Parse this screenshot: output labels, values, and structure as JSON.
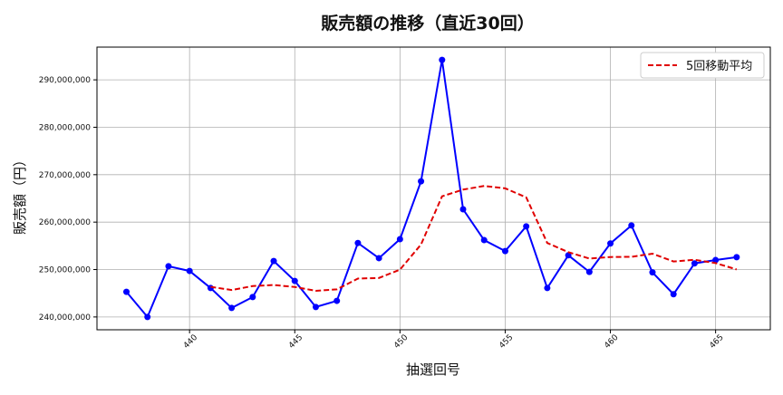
{
  "chart_data": {
    "type": "line",
    "title": "販売額の推移（直近30回）",
    "xlabel": "抽選回号",
    "ylabel": "販売額（円）",
    "x": [
      437,
      438,
      439,
      440,
      441,
      442,
      443,
      444,
      445,
      446,
      447,
      448,
      449,
      450,
      451,
      452,
      453,
      454,
      455,
      456,
      457,
      458,
      459,
      460,
      461,
      462,
      463,
      464,
      465,
      466
    ],
    "xlim": [
      435.6,
      467.6
    ],
    "ylim": [
      237300000,
      296900000
    ],
    "x_ticks": [
      440,
      445,
      450,
      455,
      460,
      465
    ],
    "y_ticks": [
      240000000,
      250000000,
      260000000,
      270000000,
      280000000,
      290000000
    ],
    "y_tick_labels": [
      "240,000,000",
      "250,000,000",
      "260,000,000",
      "270,000,000",
      "280,000,000",
      "290,000,000"
    ],
    "grid": true,
    "legend_position": "top-right",
    "series": [
      {
        "name": "",
        "style": "solid-markers",
        "color": "#0000ff",
        "values": [
          245300000,
          240000000,
          250700000,
          249700000,
          246100000,
          241900000,
          244200000,
          251800000,
          247600000,
          242100000,
          243400000,
          255600000,
          252400000,
          256400000,
          268600000,
          294200000,
          262700000,
          256200000,
          253900000,
          259100000,
          246100000,
          253000000,
          249500000,
          255500000,
          259300000,
          249400000,
          244800000,
          251300000,
          252000000,
          252600000
        ]
      },
      {
        "name": "5回移動平均",
        "style": "dashed",
        "color": "#e00000",
        "values": [
          null,
          null,
          null,
          null,
          246360000,
          245680000,
          246520000,
          246740000,
          246320000,
          245520000,
          245820000,
          248100000,
          248220000,
          249980000,
          255280000,
          265440000,
          266860000,
          267620000,
          267120000,
          265220000,
          255600000,
          253660000,
          252320000,
          252640000,
          252680000,
          253340000,
          251700000,
          252060000,
          251360000,
          250020000
        ]
      }
    ]
  }
}
